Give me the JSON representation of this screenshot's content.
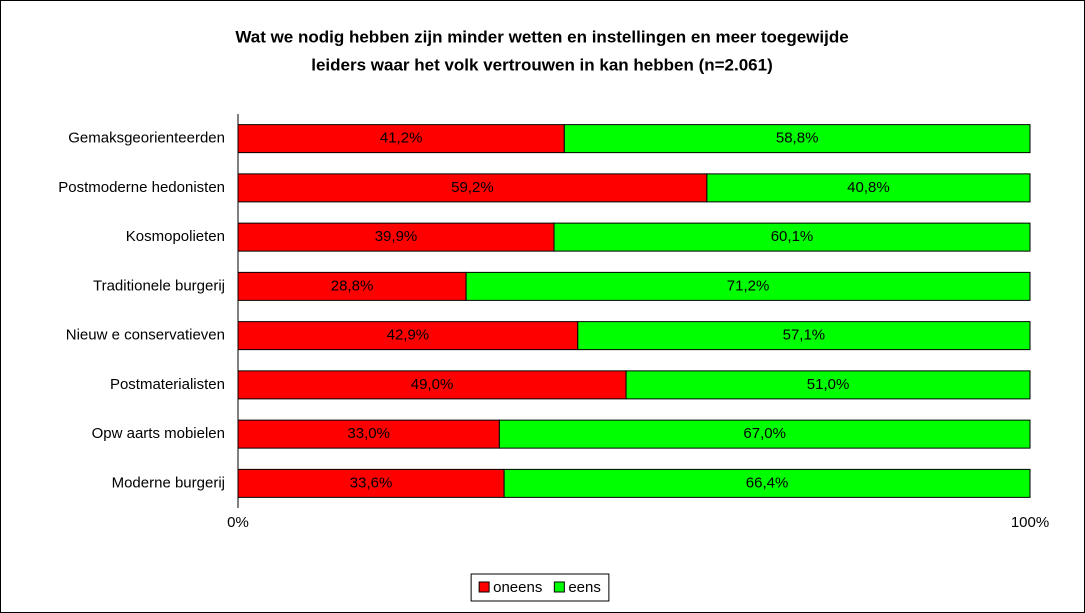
{
  "chart_data": {
    "type": "bar",
    "orientation": "horizontal",
    "stacked": true,
    "title": [
      "Wat we nodig hebben zijn minder wetten en instellingen en meer toegewijde",
      "leiders waar het volk vertrouwen in kan hebben (n=2.061)"
    ],
    "categories": [
      "Gemaksgeorienteerden",
      "Postmoderne hedonisten",
      "Kosmopolieten",
      "Traditionele burgerij",
      "Nieuw e conservatieven",
      "Postmaterialisten",
      "Opw aarts mobielen",
      "Moderne burgerij"
    ],
    "series": [
      {
        "name": "oneens",
        "color": "#ff0000",
        "values": [
          41.2,
          59.2,
          39.9,
          28.8,
          42.9,
          49.0,
          33.0,
          33.6
        ],
        "value_labels": [
          "41,2%",
          "59,2%",
          "39,9%",
          "28,8%",
          "42,9%",
          "49,0%",
          "33,0%",
          "33,6%"
        ]
      },
      {
        "name": "eens",
        "color": "#00ff00",
        "values": [
          58.8,
          40.8,
          60.1,
          71.2,
          57.1,
          51.0,
          67.0,
          66.4
        ],
        "value_labels": [
          "58,8%",
          "40,8%",
          "60,1%",
          "71,2%",
          "57,1%",
          "51,0%",
          "67,0%",
          "66,4%"
        ]
      }
    ],
    "xlim": [
      0,
      100
    ],
    "xticks": [
      {
        "value": 0,
        "label": "0%"
      },
      {
        "value": 100,
        "label": "100%"
      }
    ],
    "grid": false,
    "legend": "bottom"
  }
}
